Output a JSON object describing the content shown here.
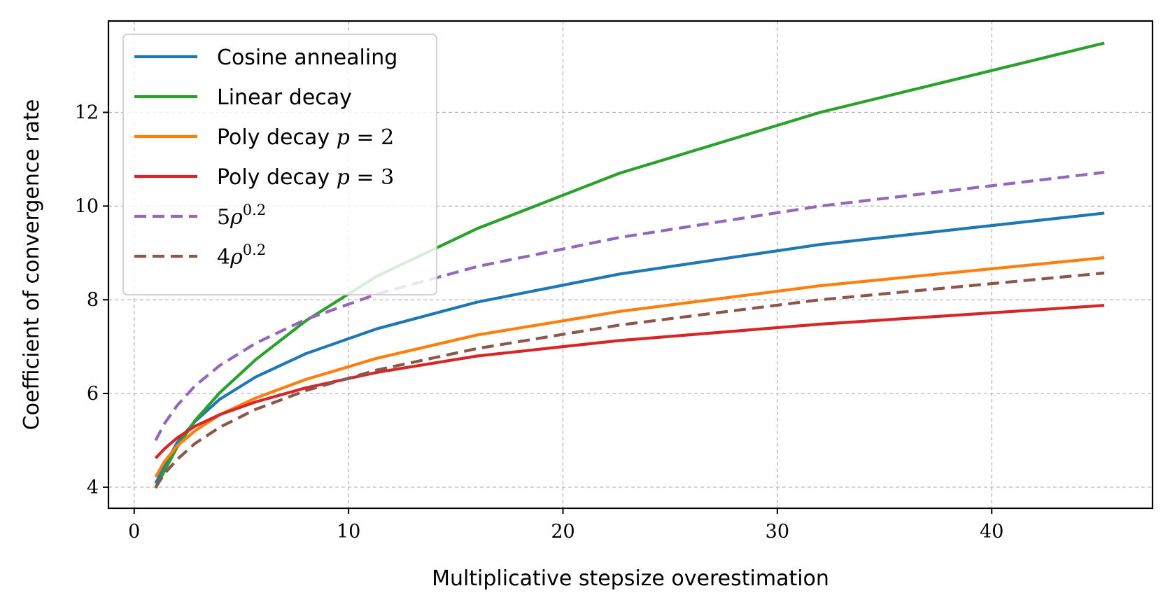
{
  "chart_data": {
    "type": "line",
    "title": "",
    "xlabel": "Multiplicative stepsize overestimation",
    "ylabel": "Coefficient of convergence rate",
    "xlim": [
      -1.2,
      47.5
    ],
    "ylim": [
      3.55,
      13.95
    ],
    "xticks": [
      0,
      10,
      20,
      30,
      40
    ],
    "xtick_labels": [
      "0",
      "10",
      "20",
      "30",
      "40"
    ],
    "yticks": [
      4,
      6,
      8,
      10,
      12
    ],
    "ytick_labels": [
      "4",
      "6",
      "8",
      "10",
      "12"
    ],
    "grid": true,
    "legend_position": "top-left",
    "x": [
      1,
      1.414,
      2,
      2.828,
      4,
      5.657,
      8,
      11.31,
      16,
      22.63,
      32,
      45.25
    ],
    "series": [
      {
        "name": "Cosine annealing",
        "color": "#1f77b4",
        "dashed": false,
        "values": [
          4.08,
          4.45,
          4.95,
          5.4,
          5.88,
          6.35,
          6.85,
          7.38,
          7.95,
          8.55,
          9.18,
          9.85
        ]
      },
      {
        "name": "Linear decay",
        "color": "#2ca02c",
        "dashed": false,
        "values": [
          3.98,
          4.35,
          4.85,
          5.42,
          6.02,
          6.72,
          7.55,
          8.5,
          9.52,
          10.7,
          12.0,
          13.48
        ]
      },
      {
        "name": "Poly decay p = 2",
        "color": "#ff7f0e",
        "dashed": false,
        "values": [
          4.22,
          4.55,
          4.88,
          5.2,
          5.55,
          5.9,
          6.3,
          6.75,
          7.25,
          7.75,
          8.3,
          8.9
        ]
      },
      {
        "name": "Poly decay p = 3",
        "color": "#d62728",
        "dashed": false,
        "values": [
          4.62,
          4.82,
          5.05,
          5.3,
          5.55,
          5.82,
          6.12,
          6.45,
          6.8,
          7.13,
          7.48,
          7.88
        ]
      },
      {
        "name": "5ρ^0.2",
        "color": "#9467bd",
        "dashed": true,
        "values": [
          5.0,
          5.36,
          5.74,
          6.16,
          6.6,
          7.07,
          7.58,
          8.12,
          8.71,
          9.33,
          10.0,
          10.72
        ]
      },
      {
        "name": "4ρ^0.2",
        "color": "#8c564b",
        "dashed": true,
        "values": [
          4.0,
          4.29,
          4.59,
          4.93,
          5.28,
          5.66,
          6.06,
          6.5,
          6.96,
          7.46,
          8.0,
          8.57
        ]
      }
    ]
  }
}
